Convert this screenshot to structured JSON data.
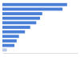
{
  "chart_data": {
    "type": "bar",
    "orientation": "horizontal",
    "categories": [
      null,
      null,
      null,
      null,
      null,
      null,
      null,
      null,
      null,
      null,
      null
    ],
    "values": [
      86,
      80,
      53,
      50,
      45,
      37,
      30,
      22,
      19,
      16,
      6
    ],
    "colors": [
      "#4a7fd8",
      "#4a7fd8",
      "#4a7fd8",
      "#4a7fd8",
      "#4a7fd8",
      "#4a7fd8",
      "#4a7fd8",
      "#4a7fd8",
      "#4a7fd8",
      "#4a7fd8",
      "#b7c9e6"
    ],
    "xlim": [
      0,
      100
    ],
    "tick_labels": false,
    "grid": false
  }
}
